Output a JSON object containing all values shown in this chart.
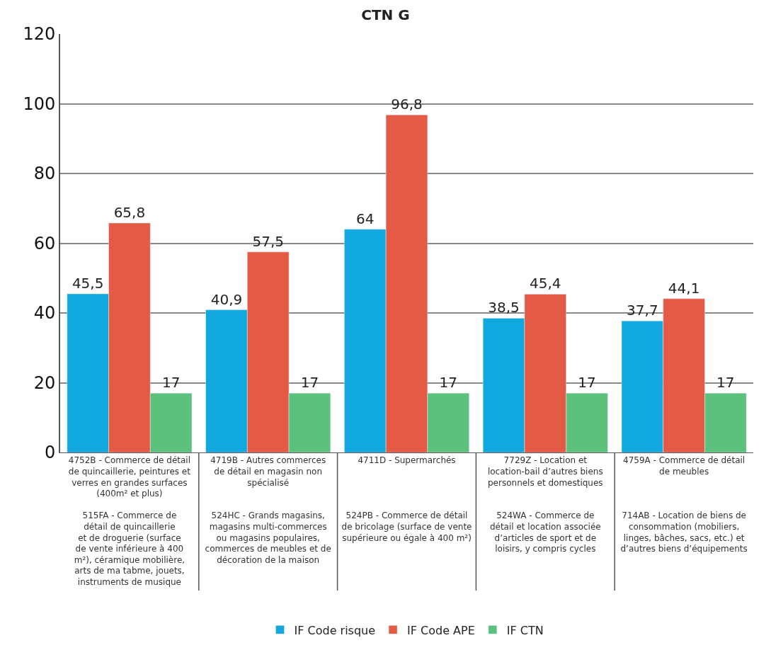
{
  "chart_data": {
    "type": "bar",
    "title": "CTN G",
    "categories": [
      "4752B - Commerce de détail\nde quincaillerie, peintures et\nverres en grandes surfaces\n(400m² et plus)\n\n515FA - Commerce de\ndétail de quincaillerie\net de droguerie (surface\nde vente inférieure à 400\nm²), céramique mobilière,\narts de ma tabme, jouets,\ninstruments de musique",
      "4719B - Autres commerces\nde détail en magasin non\nspécialisé\n\n\n524HC - Grands magasins,\nmagasins multi-commerces\nou magasins populaires,\ncommerces de meubles et de\ndécoration de la maison\n\n\n",
      "4711D - Supermarchés\n\n\n\n\n524PB - Commerce de détail\nde bricolage (surface de vente\nsupérieure ou égale à 400 m²)\n\n\n\n",
      "7729Z - Location et\nlocation-bail d’autres biens\npersonnels et domestiques\n\n\n524WA - Commerce de\ndétail et location associée\nd’articles de sport et de\nloisirs, y compris cycles\n\n\n",
      "4759A - Commerce de détail\nde meubles\n\n\n\n714AB - Location de biens de\nconsommation (mobiliers,\nlinges, bâches, sacs, etc.) et\nd’autres biens d’équipements\n\n\n"
    ],
    "series": [
      {
        "name": "IF Code risque",
        "color": "#11a7df",
        "values": [
          45.5,
          40.9,
          64,
          38.5,
          37.7
        ],
        "value_labels": [
          "45,5",
          "40,9",
          "64",
          "38,5",
          "37,7"
        ]
      },
      {
        "name": "IF Code APE",
        "color": "#e55a45",
        "values": [
          65.8,
          57.5,
          96.8,
          45.4,
          44.1
        ],
        "value_labels": [
          "65,8",
          "57,5",
          "96,8",
          "45,4",
          "44,1"
        ]
      },
      {
        "name": "IF CTN",
        "color": "#5bc17c",
        "values": [
          17,
          17,
          17,
          17,
          17
        ],
        "value_labels": [
          "17",
          "17",
          "17",
          "17",
          "17"
        ]
      }
    ],
    "ylim": [
      0,
      120
    ],
    "yticks": [
      0,
      20,
      40,
      60,
      80,
      100,
      120
    ],
    "grid": "y",
    "legend": "bottom"
  }
}
